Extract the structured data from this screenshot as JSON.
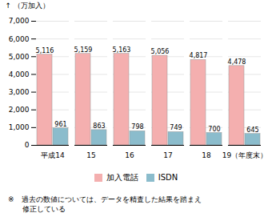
{
  "chart_data": {
    "type": "bar",
    "categories": [
      "平成14",
      "15",
      "16",
      "17",
      "18",
      "19（年度末）"
    ],
    "series": [
      {
        "name": "加入電話",
        "color": "#F4AFAF",
        "values": [
          5116,
          5159,
          5163,
          5056,
          4817,
          4478
        ],
        "value_labels": [
          "5,116",
          "5,159",
          "5,163",
          "5,056",
          "4,817",
          "4,478"
        ]
      },
      {
        "name": "ISDN",
        "color": "#8BBCCC",
        "values": [
          961,
          863,
          798,
          749,
          700,
          645
        ],
        "value_labels": [
          "961",
          "863",
          "798",
          "749",
          "700",
          "645"
        ]
      }
    ],
    "ylabel": "（万加入）",
    "ylim": [
      0,
      7000
    ],
    "yticks": [
      0,
      {
        "value": 1000,
        "label": "1,000"
      },
      {
        "value": 2000,
        "label": "2,000"
      },
      {
        "value": 3000,
        "label": "3,000"
      },
      {
        "value": 4000,
        "label": "4,000"
      },
      {
        "value": 5000,
        "label": "5,000"
      },
      {
        "value": 6000,
        "label": "6,000"
      },
      {
        "value": 7000,
        "label": "7,000"
      }
    ],
    "grid": true,
    "legend": "bottom",
    "data_labels": true,
    "annotations": [
      "※　過去の数値については、データを精査した結果を踏まえ",
      "　　修正している"
    ]
  }
}
